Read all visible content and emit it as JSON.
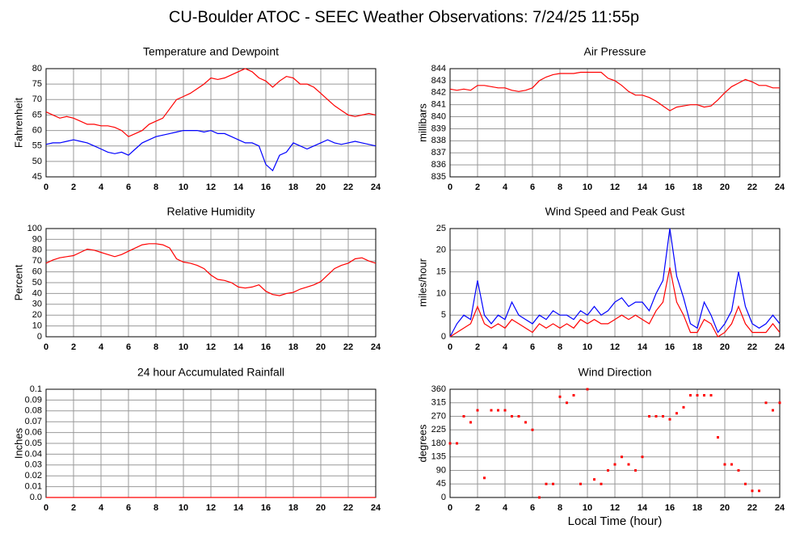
{
  "title": "CU-Boulder ATOC - SEEC Weather Observations: 7/24/25 11:55p",
  "chart_data": [
    {
      "type": "line",
      "title": "Temperature and Dewpoint",
      "ylabel": "Fahrenheit",
      "x": [
        0,
        0.5,
        1,
        1.5,
        2,
        2.5,
        3,
        3.5,
        4,
        4.5,
        5,
        5.5,
        6,
        6.5,
        7,
        7.5,
        8,
        8.5,
        9,
        9.5,
        10,
        10.5,
        11,
        11.5,
        12,
        12.5,
        13,
        13.5,
        14,
        14.5,
        15,
        15.5,
        16,
        16.5,
        17,
        17.5,
        18,
        18.5,
        19,
        19.5,
        20,
        20.5,
        21,
        21.5,
        22,
        22.5,
        23,
        23.5,
        24
      ],
      "series": [
        {
          "color": "#ff0000",
          "values": [
            66,
            65,
            64,
            64.5,
            64,
            63,
            62,
            62,
            61.5,
            61.5,
            61,
            60,
            58,
            59,
            60,
            62,
            63,
            64,
            67,
            70,
            71,
            72,
            73.5,
            75,
            77,
            76.5,
            77,
            78,
            79,
            80,
            79,
            77,
            76,
            74,
            76,
            77.5,
            77,
            75,
            75,
            74,
            72,
            70,
            68,
            66.5,
            65,
            64.5,
            65,
            65.5,
            65
          ]
        },
        {
          "color": "#0000ff",
          "values": [
            55.5,
            56,
            56,
            56.5,
            57,
            56.5,
            56,
            55,
            54,
            53,
            52.5,
            53,
            52,
            54,
            56,
            57,
            58,
            58.5,
            59,
            59.5,
            60,
            60,
            60,
            59.5,
            60,
            59,
            59,
            58,
            57,
            56,
            56,
            55,
            49,
            47,
            52,
            53,
            56,
            55,
            54,
            55,
            56,
            57,
            56,
            55.5,
            56,
            56.5,
            56,
            55.5,
            55
          ]
        }
      ],
      "xlim": [
        0,
        24
      ],
      "xticks": [
        0,
        2,
        4,
        6,
        8,
        10,
        12,
        14,
        16,
        18,
        20,
        22,
        24
      ],
      "ylim": [
        45,
        80
      ],
      "yticks": [
        45,
        50,
        55,
        60,
        65,
        70,
        75,
        80
      ],
      "grid": true
    },
    {
      "type": "line",
      "title": "Air Pressure",
      "ylabel": "millibars",
      "x": [
        0,
        0.5,
        1,
        1.5,
        2,
        2.5,
        3,
        3.5,
        4,
        4.5,
        5,
        5.5,
        6,
        6.5,
        7,
        7.5,
        8,
        8.5,
        9,
        9.5,
        10,
        10.5,
        11,
        11.5,
        12,
        12.5,
        13,
        13.5,
        14,
        14.5,
        15,
        15.5,
        16,
        16.5,
        17,
        17.5,
        18,
        18.5,
        19,
        19.5,
        20,
        20.5,
        21,
        21.5,
        22,
        22.5,
        23,
        23.5,
        24
      ],
      "series": [
        {
          "color": "#ff0000",
          "values": [
            842.3,
            842.2,
            842.3,
            842.2,
            842.6,
            842.6,
            842.5,
            842.4,
            842.4,
            842.2,
            842.1,
            842.2,
            842.4,
            843.0,
            843.3,
            843.5,
            843.6,
            843.6,
            843.6,
            843.7,
            843.7,
            843.7,
            843.7,
            843.2,
            843.0,
            842.6,
            842.1,
            841.8,
            841.8,
            841.6,
            841.3,
            840.9,
            840.5,
            840.8,
            840.9,
            841.0,
            841.0,
            840.8,
            840.9,
            841.4,
            842.0,
            842.5,
            842.8,
            843.1,
            842.9,
            842.6,
            842.6,
            842.4,
            842.4
          ]
        }
      ],
      "xlim": [
        0,
        24
      ],
      "xticks": [
        0,
        2,
        4,
        6,
        8,
        10,
        12,
        14,
        16,
        18,
        20,
        22,
        24
      ],
      "ylim": [
        835,
        844
      ],
      "yticks": [
        835,
        836,
        837,
        838,
        839,
        840,
        841,
        842,
        843,
        844
      ],
      "grid": true
    },
    {
      "type": "line",
      "title": "Relative Humidity",
      "ylabel": "Percent",
      "x": [
        0,
        0.5,
        1,
        1.5,
        2,
        2.5,
        3,
        3.5,
        4,
        4.5,
        5,
        5.5,
        6,
        6.5,
        7,
        7.5,
        8,
        8.5,
        9,
        9.5,
        10,
        10.5,
        11,
        11.5,
        12,
        12.5,
        13,
        13.5,
        14,
        14.5,
        15,
        15.5,
        16,
        16.5,
        17,
        17.5,
        18,
        18.5,
        19,
        19.5,
        20,
        20.5,
        21,
        21.5,
        22,
        22.5,
        23,
        23.5,
        24
      ],
      "series": [
        {
          "color": "#ff0000",
          "values": [
            68,
            71,
            73,
            74,
            75,
            78,
            81,
            80,
            78,
            76,
            74,
            76,
            79,
            82,
            85,
            86,
            86,
            85,
            82,
            72,
            69,
            68,
            66,
            63,
            57,
            53,
            52,
            50,
            46,
            45,
            46,
            48,
            42,
            39,
            38,
            40,
            41,
            44,
            46,
            48,
            51,
            57,
            63,
            66,
            68,
            72,
            73,
            70,
            68
          ]
        }
      ],
      "xlim": [
        0,
        24
      ],
      "xticks": [
        0,
        2,
        4,
        6,
        8,
        10,
        12,
        14,
        16,
        18,
        20,
        22,
        24
      ],
      "ylim": [
        0,
        100
      ],
      "yticks": [
        0,
        10,
        20,
        30,
        40,
        50,
        60,
        70,
        80,
        90,
        100
      ],
      "grid": true
    },
    {
      "type": "line",
      "title": "Wind Speed and Peak Gust",
      "ylabel": "miles/hour",
      "x": [
        0,
        0.5,
        1,
        1.5,
        2,
        2.5,
        3,
        3.5,
        4,
        4.5,
        5,
        5.5,
        6,
        6.5,
        7,
        7.5,
        8,
        8.5,
        9,
        9.5,
        10,
        10.5,
        11,
        11.5,
        12,
        12.5,
        13,
        13.5,
        14,
        14.5,
        15,
        15.5,
        16,
        16.5,
        17,
        17.5,
        18,
        18.5,
        19,
        19.5,
        20,
        20.5,
        21,
        21.5,
        22,
        22.5,
        23,
        23.5,
        24
      ],
      "series": [
        {
          "color": "#0000ff",
          "values": [
            0,
            3,
            5,
            4,
            13,
            5,
            3,
            5,
            4,
            8,
            5,
            4,
            3,
            5,
            4,
            6,
            5,
            5,
            4,
            6,
            5,
            7,
            5,
            6,
            8,
            9,
            7,
            8,
            8,
            6,
            10,
            13,
            25,
            14,
            9,
            3,
            2,
            8,
            5,
            1,
            3,
            6,
            15,
            7,
            3,
            2,
            3,
            5,
            3
          ]
        },
        {
          "color": "#ff0000",
          "values": [
            0,
            1,
            2,
            3,
            7,
            3,
            2,
            3,
            2,
            4,
            3,
            2,
            1,
            3,
            2,
            3,
            2,
            3,
            2,
            4,
            3,
            4,
            3,
            3,
            4,
            5,
            4,
            5,
            4,
            3,
            6,
            8,
            16,
            8,
            5,
            1,
            1,
            4,
            3,
            0,
            1,
            3,
            7,
            3,
            1,
            1,
            1,
            3,
            1
          ]
        }
      ],
      "xlim": [
        0,
        24
      ],
      "xticks": [
        0,
        2,
        4,
        6,
        8,
        10,
        12,
        14,
        16,
        18,
        20,
        22,
        24
      ],
      "ylim": [
        0,
        25
      ],
      "yticks": [
        0,
        5,
        10,
        15,
        20,
        25
      ],
      "grid": true
    },
    {
      "type": "line",
      "title": "24 hour Accumulated Rainfall",
      "ylabel": "Inches",
      "x": [
        0,
        24
      ],
      "series": [
        {
          "color": "#ff0000",
          "values": [
            0,
            0
          ]
        }
      ],
      "xlim": [
        0,
        24
      ],
      "xticks": [
        0,
        2,
        4,
        6,
        8,
        10,
        12,
        14,
        16,
        18,
        20,
        22,
        24
      ],
      "ylim": [
        0,
        0.1
      ],
      "yticks": [
        {
          "value": 0,
          "label": "0.0"
        },
        0.01,
        0.02,
        0.03,
        0.04,
        0.05,
        0.06,
        0.07,
        0.08,
        0.09,
        0.1
      ],
      "grid": true
    },
    {
      "type": "scatter",
      "title": "Wind Direction",
      "ylabel": "degrees",
      "xlabel": "Local Time (hour)",
      "x": [
        0,
        0.5,
        1,
        1.5,
        2,
        2.5,
        3,
        3.5,
        4,
        4.5,
        5,
        5.5,
        6,
        6.5,
        7,
        7.5,
        8,
        8.5,
        9,
        9.5,
        10,
        10.5,
        11,
        11.5,
        12,
        12.5,
        13,
        13.5,
        14,
        14.5,
        15,
        15.5,
        16,
        16.5,
        17,
        17.5,
        18,
        18.5,
        19,
        19.5,
        20,
        20.5,
        21,
        21.5,
        22,
        22.5,
        23,
        23.5,
        24
      ],
      "series": [
        {
          "color": "#ff0000",
          "values": [
            180,
            180,
            270,
            250,
            290,
            65,
            290,
            290,
            290,
            270,
            270,
            250,
            225,
            0,
            45,
            45,
            335,
            315,
            340,
            45,
            360,
            60,
            45,
            90,
            110,
            135,
            110,
            90,
            135,
            270,
            270,
            270,
            260,
            280,
            300,
            340,
            340,
            340,
            340,
            200,
            110,
            110,
            90,
            45,
            22,
            22,
            315,
            290,
            315
          ]
        }
      ],
      "xlim": [
        0,
        24
      ],
      "xticks": [
        0,
        2,
        4,
        6,
        8,
        10,
        12,
        14,
        16,
        18,
        20,
        22,
        24
      ],
      "ylim": [
        0,
        360
      ],
      "yticks": [
        0,
        45,
        90,
        135,
        180,
        225,
        270,
        315,
        360
      ],
      "grid": true
    }
  ]
}
